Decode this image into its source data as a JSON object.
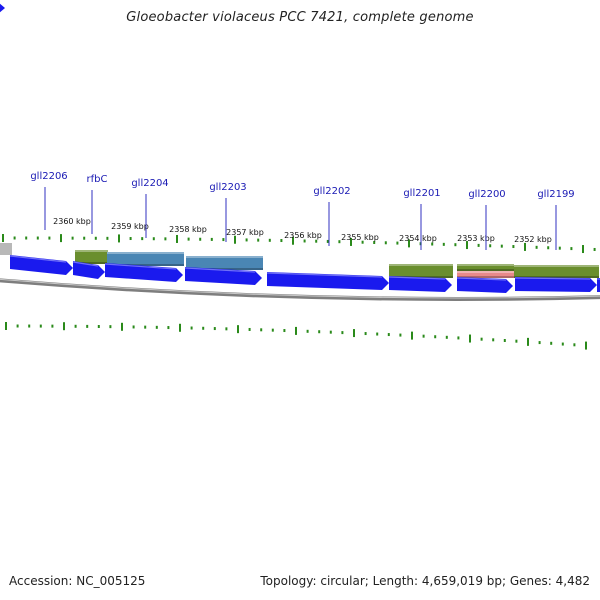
{
  "header": {
    "title": "Gloeobacter violaceus PCC 7421, complete genome"
  },
  "footer": {
    "accession": "Accession: NC_005125",
    "summary": "Topology: circular; Length: 4,659,019 bp; Genes: 4,482"
  },
  "map": {
    "colors": {
      "cds": "#1a1aee",
      "label": "#1a1ab4",
      "tick": "#2a8a1a",
      "backbone": "#8a8a8a",
      "feature_olive": "#6a8e2e",
      "feature_steel": "#4a86b4",
      "feature_salmon": "#e88a8a"
    },
    "position_labels": [
      "2360 kbp",
      "2359 kbp",
      "2358 kbp",
      "2357 kbp",
      "2356 kbp",
      "2355 kbp",
      "2354 kbp",
      "2353 kbp",
      "2352 kbp"
    ],
    "gene_labels": [
      "gll2206",
      "rfbC",
      "gll2204",
      "gll2203",
      "gll2202",
      "gll2201",
      "gll2200",
      "gll2199"
    ]
  }
}
